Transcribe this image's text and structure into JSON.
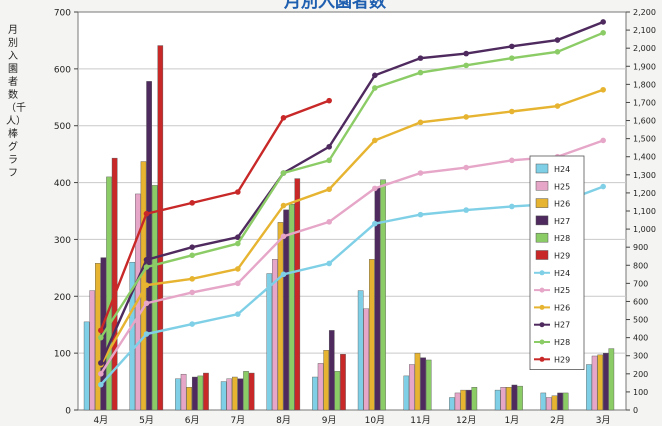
{
  "chart_data": {
    "type": "bar",
    "title": "月別入園者数",
    "ylabel": "月別入園者数（千人）棒グラフ",
    "ylim_left": [
      0,
      700
    ],
    "ylim_right": [
      0,
      2200
    ],
    "grid": true,
    "legend_position": "right",
    "categories": [
      "4月",
      "5月",
      "6月",
      "7月",
      "8月",
      "9月",
      "10月",
      "11月",
      "12月",
      "1月",
      "2月",
      "3月"
    ],
    "left_ticks": [
      "0",
      "100",
      "200",
      "300",
      "400",
      "500",
      "600",
      "700"
    ],
    "right_ticks": [
      "0",
      "100",
      "200",
      "300",
      "400",
      "500",
      "600",
      "700",
      "800",
      "900",
      "1,000",
      "1,100",
      "1,200",
      "1,300",
      "1,400",
      "1,500",
      "1,600",
      "1,700",
      "1,800",
      "1,900",
      "2,000",
      "2,100",
      "2,200"
    ],
    "bar_series": [
      {
        "name": "H24",
        "color": "#7fd0e6",
        "values": [
          155,
          260,
          55,
          50,
          240,
          58,
          210,
          60,
          22,
          35,
          30,
          80
        ]
      },
      {
        "name": "H25",
        "color": "#e6a6c8",
        "values": [
          210,
          380,
          63,
          55,
          265,
          82,
          178,
          80,
          30,
          40,
          22,
          95
        ]
      },
      {
        "name": "H26",
        "color": "#e6b430",
        "values": [
          258,
          437,
          40,
          58,
          330,
          105,
          265,
          100,
          35,
          40,
          25,
          97
        ]
      },
      {
        "name": "H27",
        "color": "#4e2a5e",
        "values": [
          268,
          578,
          58,
          55,
          352,
          140,
          392,
          92,
          35,
          44,
          30,
          100
        ]
      },
      {
        "name": "H28",
        "color": "#8ccc66",
        "values": [
          410,
          395,
          60,
          68,
          362,
          68,
          405,
          88,
          40,
          42,
          30,
          108
        ]
      },
      {
        "name": "H29",
        "color": "#c82828",
        "values": [
          443,
          641,
          65,
          65,
          407,
          98
        ]
      }
    ],
    "line_series": [
      {
        "name": "H24",
        "color": "#7fd0e6",
        "values": [
          140,
          420,
          475,
          530,
          750,
          810,
          1030,
          1080,
          1105,
          1125,
          1140,
          1235
        ]
      },
      {
        "name": "H25",
        "color": "#e6a6c8",
        "values": [
          200,
          590,
          650,
          700,
          960,
          1040,
          1225,
          1310,
          1340,
          1380,
          1400,
          1490
        ]
      },
      {
        "name": "H26",
        "color": "#e6b430",
        "values": [
          250,
          690,
          725,
          780,
          1130,
          1220,
          1490,
          1590,
          1620,
          1650,
          1680,
          1770
        ]
      },
      {
        "name": "H27",
        "color": "#4e2a5e",
        "values": [
          260,
          830,
          900,
          955,
          1310,
          1455,
          1850,
          1945,
          1970,
          2010,
          2045,
          2145
        ]
      },
      {
        "name": "H28",
        "color": "#8ccc66",
        "values": [
          400,
          790,
          855,
          920,
          1310,
          1380,
          1780,
          1865,
          1905,
          1945,
          1980,
          2085
        ]
      },
      {
        "name": "H29",
        "color": "#c82828",
        "values": [
          440,
          1085,
          1145,
          1205,
          1615,
          1710
        ]
      }
    ]
  }
}
